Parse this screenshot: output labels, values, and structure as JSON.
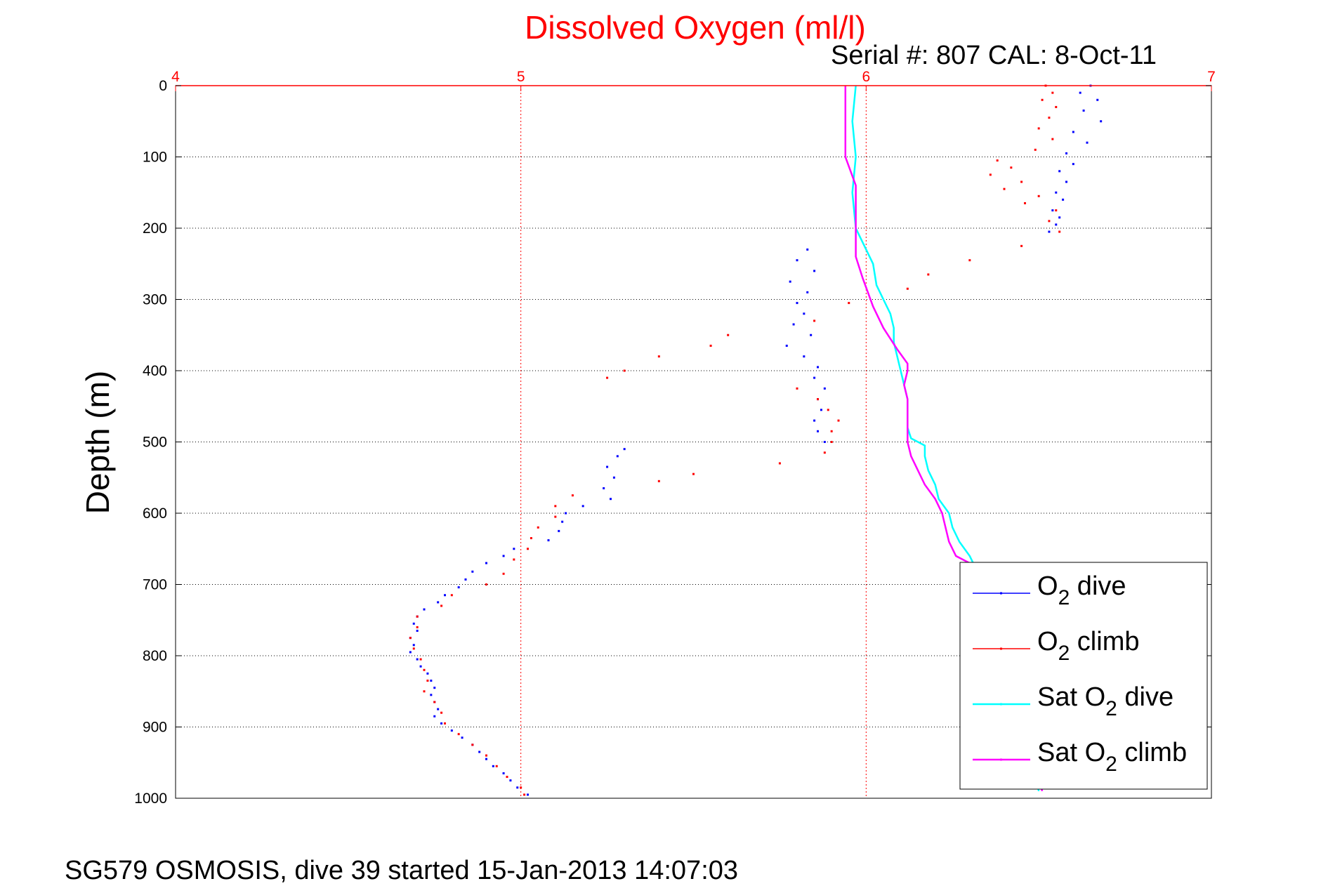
{
  "chart_data": {
    "type": "scatter",
    "title": "Dissolved Oxygen (ml/l)",
    "subtitle": "Serial #: 807  CAL: 8-Oct-11",
    "ylabel": "Depth (m)",
    "caption": "SG579 OSMOSIS, dive 39 started 15-Jan-2013 14:07:03",
    "xlim": [
      4,
      7
    ],
    "ylim": [
      0,
      1000
    ],
    "y_reversed": true,
    "x_axis_position": "top",
    "x_ticks": [
      "4",
      "5",
      "6",
      "7"
    ],
    "y_ticks": [
      "0",
      "100",
      "200",
      "300",
      "400",
      "500",
      "600",
      "700",
      "800",
      "900",
      "1000"
    ],
    "grid": true,
    "legend_placement": "bottom-right",
    "series": [
      {
        "name": "O2 dive",
        "legend": {
          "base": "O",
          "sub": "2",
          "rest": " dive"
        },
        "style": "dots",
        "color": "#0000ff",
        "points": [
          [
            6.65,
            0
          ],
          [
            6.62,
            10
          ],
          [
            6.67,
            20
          ],
          [
            6.63,
            35
          ],
          [
            6.68,
            50
          ],
          [
            6.6,
            65
          ],
          [
            6.64,
            80
          ],
          [
            6.58,
            95
          ],
          [
            6.6,
            110
          ],
          [
            6.56,
            120
          ],
          [
            6.58,
            135
          ],
          [
            6.55,
            150
          ],
          [
            6.57,
            160
          ],
          [
            6.54,
            175
          ],
          [
            6.56,
            185
          ],
          [
            6.55,
            195
          ],
          [
            6.53,
            205
          ],
          [
            5.83,
            230
          ],
          [
            5.8,
            245
          ],
          [
            5.85,
            260
          ],
          [
            5.78,
            275
          ],
          [
            5.83,
            290
          ],
          [
            5.8,
            305
          ],
          [
            5.82,
            320
          ],
          [
            5.79,
            335
          ],
          [
            5.84,
            350
          ],
          [
            5.77,
            365
          ],
          [
            5.82,
            380
          ],
          [
            5.86,
            395
          ],
          [
            5.85,
            410
          ],
          [
            5.88,
            425
          ],
          [
            5.86,
            440
          ],
          [
            5.87,
            455
          ],
          [
            5.85,
            470
          ],
          [
            5.86,
            485
          ],
          [
            5.88,
            500
          ],
          [
            5.3,
            510
          ],
          [
            5.28,
            520
          ],
          [
            5.25,
            535
          ],
          [
            5.27,
            550
          ],
          [
            5.24,
            565
          ],
          [
            5.26,
            580
          ],
          [
            5.18,
            590
          ],
          [
            5.13,
            600
          ],
          [
            5.12,
            612
          ],
          [
            5.11,
            625
          ],
          [
            5.08,
            638
          ],
          [
            4.98,
            650
          ],
          [
            4.95,
            660
          ],
          [
            4.9,
            670
          ],
          [
            4.86,
            682
          ],
          [
            4.84,
            693
          ],
          [
            4.82,
            704
          ],
          [
            4.78,
            715
          ],
          [
            4.76,
            725
          ],
          [
            4.72,
            735
          ],
          [
            4.7,
            745
          ],
          [
            4.69,
            755
          ],
          [
            4.7,
            765
          ],
          [
            4.68,
            775
          ],
          [
            4.69,
            785
          ],
          [
            4.68,
            795
          ],
          [
            4.7,
            805
          ],
          [
            4.71,
            815
          ],
          [
            4.73,
            825
          ],
          [
            4.74,
            835
          ],
          [
            4.75,
            845
          ],
          [
            4.74,
            855
          ],
          [
            4.75,
            865
          ],
          [
            4.76,
            875
          ],
          [
            4.75,
            885
          ],
          [
            4.77,
            895
          ],
          [
            4.8,
            905
          ],
          [
            4.83,
            915
          ],
          [
            4.86,
            925
          ],
          [
            4.88,
            935
          ],
          [
            4.9,
            945
          ],
          [
            4.92,
            955
          ],
          [
            4.95,
            965
          ],
          [
            4.97,
            975
          ],
          [
            4.99,
            985
          ],
          [
            5.02,
            995
          ]
        ]
      },
      {
        "name": "O2 climb",
        "legend": {
          "base": "O",
          "sub": "2",
          "rest": " climb"
        },
        "style": "dots",
        "color": "#ff0000",
        "points": [
          [
            6.52,
            0
          ],
          [
            6.54,
            10
          ],
          [
            6.51,
            20
          ],
          [
            6.55,
            30
          ],
          [
            6.53,
            45
          ],
          [
            6.5,
            60
          ],
          [
            6.54,
            75
          ],
          [
            6.49,
            90
          ],
          [
            6.38,
            105
          ],
          [
            6.42,
            115
          ],
          [
            6.36,
            125
          ],
          [
            6.45,
            135
          ],
          [
            6.4,
            145
          ],
          [
            6.5,
            155
          ],
          [
            6.46,
            165
          ],
          [
            6.55,
            175
          ],
          [
            6.53,
            190
          ],
          [
            6.56,
            205
          ],
          [
            6.45,
            225
          ],
          [
            6.3,
            245
          ],
          [
            6.18,
            265
          ],
          [
            6.12,
            285
          ],
          [
            5.95,
            305
          ],
          [
            5.85,
            330
          ],
          [
            5.6,
            350
          ],
          [
            5.55,
            365
          ],
          [
            5.4,
            380
          ],
          [
            5.3,
            400
          ],
          [
            5.25,
            410
          ],
          [
            5.8,
            425
          ],
          [
            5.86,
            440
          ],
          [
            5.89,
            455
          ],
          [
            5.92,
            470
          ],
          [
            5.9,
            485
          ],
          [
            5.9,
            500
          ],
          [
            5.88,
            515
          ],
          [
            5.75,
            530
          ],
          [
            5.5,
            545
          ],
          [
            5.4,
            555
          ],
          [
            5.15,
            575
          ],
          [
            5.1,
            590
          ],
          [
            5.1,
            605
          ],
          [
            5.05,
            620
          ],
          [
            5.03,
            635
          ],
          [
            5.02,
            650
          ],
          [
            4.98,
            665
          ],
          [
            4.95,
            685
          ],
          [
            4.9,
            700
          ],
          [
            4.8,
            715
          ],
          [
            4.77,
            730
          ],
          [
            4.7,
            745
          ],
          [
            4.7,
            760
          ],
          [
            4.68,
            775
          ],
          [
            4.69,
            790
          ],
          [
            4.71,
            805
          ],
          [
            4.72,
            820
          ],
          [
            4.73,
            835
          ],
          [
            4.72,
            850
          ],
          [
            4.75,
            865
          ],
          [
            4.77,
            880
          ],
          [
            4.78,
            895
          ],
          [
            4.82,
            910
          ],
          [
            4.86,
            925
          ],
          [
            4.9,
            940
          ],
          [
            4.93,
            955
          ],
          [
            4.96,
            970
          ],
          [
            5.0,
            985
          ],
          [
            5.01,
            995
          ]
        ]
      },
      {
        "name": "Sat O2 dive",
        "legend": {
          "base": "Sat O",
          "sub": "2",
          "rest": " dive"
        },
        "style": "line",
        "color": "#00ffff",
        "points": [
          [
            5.97,
            0
          ],
          [
            5.96,
            50
          ],
          [
            5.97,
            100
          ],
          [
            5.96,
            150
          ],
          [
            5.97,
            200
          ],
          [
            5.99,
            220
          ],
          [
            6.02,
            250
          ],
          [
            6.03,
            280
          ],
          [
            6.05,
            300
          ],
          [
            6.07,
            320
          ],
          [
            6.08,
            340
          ],
          [
            6.08,
            360
          ],
          [
            6.09,
            380
          ],
          [
            6.1,
            400
          ],
          [
            6.11,
            420
          ],
          [
            6.12,
            440
          ],
          [
            6.12,
            460
          ],
          [
            6.12,
            480
          ],
          [
            6.13,
            495
          ],
          [
            6.17,
            505
          ],
          [
            6.17,
            520
          ],
          [
            6.18,
            540
          ],
          [
            6.2,
            560
          ],
          [
            6.21,
            580
          ],
          [
            6.24,
            600
          ],
          [
            6.25,
            620
          ],
          [
            6.27,
            640
          ],
          [
            6.3,
            660
          ],
          [
            6.32,
            680
          ],
          [
            6.5,
            990
          ]
        ]
      },
      {
        "name": "Sat O2 climb",
        "legend": {
          "base": "Sat O",
          "sub": "2",
          "rest": " climb"
        },
        "style": "line",
        "color": "#ff00ff",
        "points": [
          [
            5.94,
            0
          ],
          [
            5.94,
            50
          ],
          [
            5.94,
            100
          ],
          [
            5.97,
            140
          ],
          [
            5.97,
            180
          ],
          [
            5.97,
            210
          ],
          [
            5.97,
            240
          ],
          [
            5.99,
            270
          ],
          [
            6.02,
            310
          ],
          [
            6.05,
            340
          ],
          [
            6.09,
            370
          ],
          [
            6.12,
            390
          ],
          [
            6.12,
            400
          ],
          [
            6.11,
            420
          ],
          [
            6.12,
            440
          ],
          [
            6.12,
            480
          ],
          [
            6.12,
            500
          ],
          [
            6.13,
            520
          ],
          [
            6.15,
            540
          ],
          [
            6.17,
            560
          ],
          [
            6.2,
            580
          ],
          [
            6.22,
            600
          ],
          [
            6.23,
            620
          ],
          [
            6.24,
            640
          ],
          [
            6.26,
            660
          ],
          [
            6.3,
            670
          ],
          [
            6.51,
            990
          ]
        ]
      }
    ]
  }
}
